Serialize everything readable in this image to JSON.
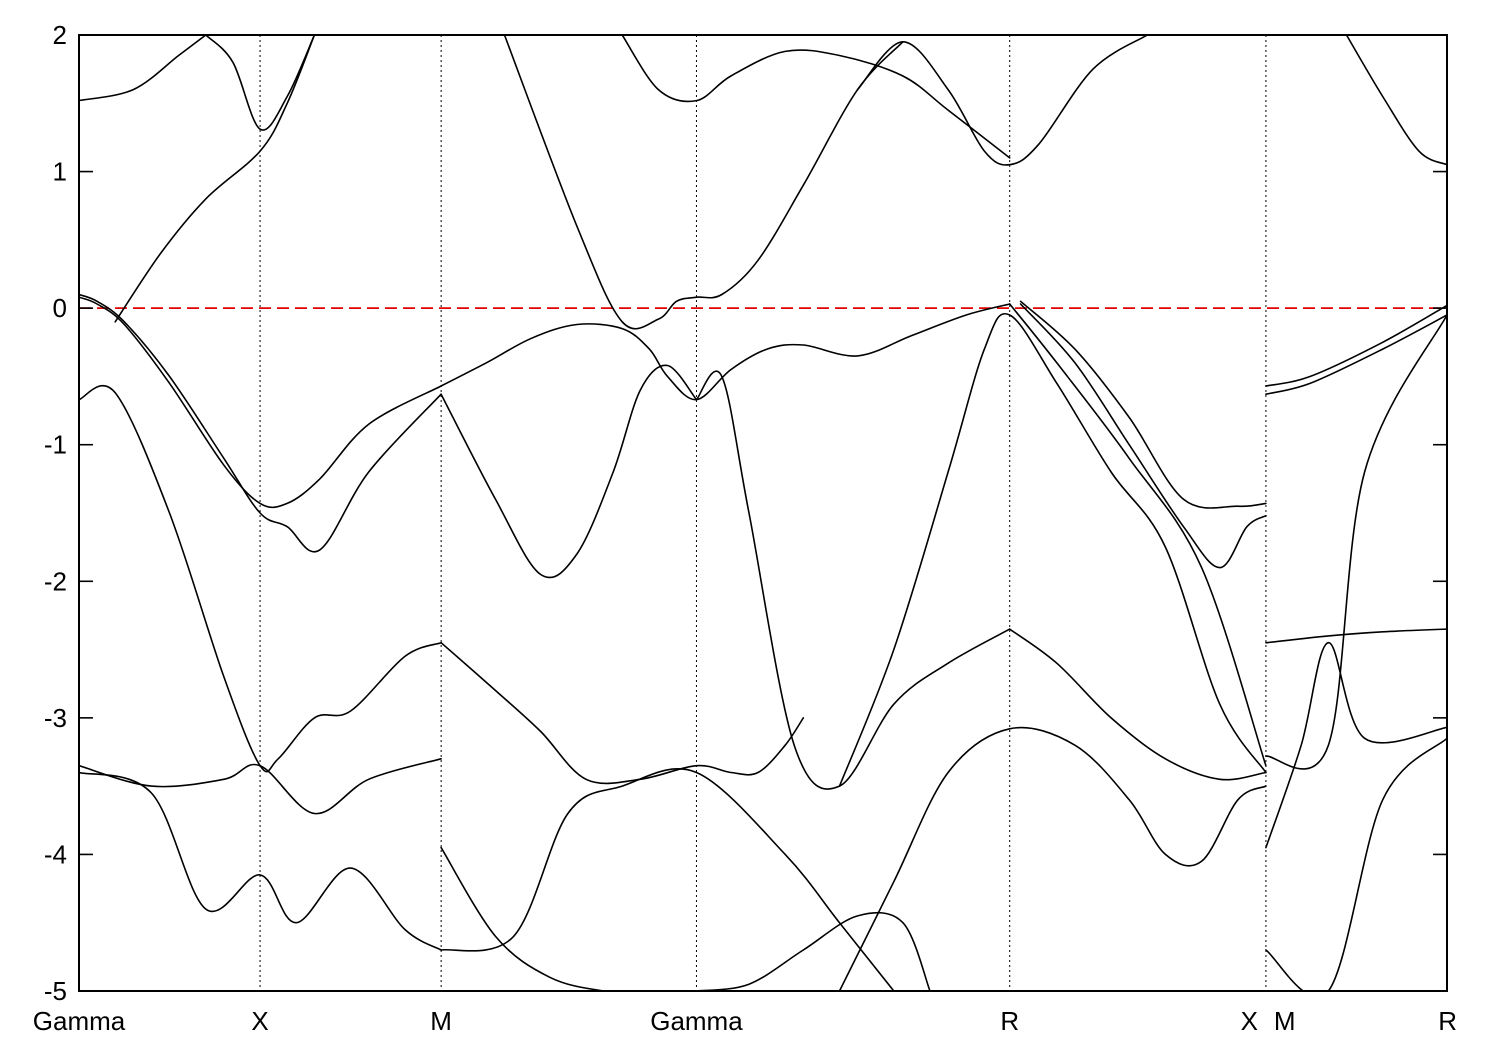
{
  "chart_data": {
    "type": "line",
    "title": "",
    "xlabel": "",
    "ylabel": "",
    "ylim": [
      -5,
      2
    ],
    "yticks": [
      2,
      1,
      0,
      -1,
      -2,
      -3,
      -4,
      -5
    ],
    "ytick_labels": [
      "2",
      "1",
      "0",
      "-1",
      "-2",
      "-3",
      "-4",
      "-5"
    ],
    "xlim": [
      0,
      7.5
    ],
    "kpoints": [
      {
        "label": "Gamma",
        "x": 0
      },
      {
        "label": "X",
        "x": 1.0
      },
      {
        "label": "M",
        "x": 2.0
      },
      {
        "label": "Gamma",
        "x": 3.41
      },
      {
        "label": "R",
        "x": 5.14
      },
      {
        "label": "X",
        "x": 6.555
      },
      {
        "label": "M",
        "x": 6.555
      },
      {
        "label": "R",
        "x": 7.555
      }
    ],
    "fermi_level": 0,
    "colors": {
      "bands": "#000000",
      "fermi": "#e00000"
    },
    "grid": false,
    "series": [
      {
        "x": [
          0,
          0.3,
          0.55,
          0.7
        ],
        "y": [
          1.52,
          1.6,
          1.85,
          2.0
        ]
      },
      {
        "x": [
          0.7,
          0.85,
          1.0,
          1.15,
          1.3
        ],
        "y": [
          2.0,
          1.8,
          1.31,
          1.55,
          2.0
        ]
      },
      {
        "x": [
          0.2,
          0.45,
          0.7,
          1.0,
          1.15,
          1.3
        ],
        "y": [
          -0.1,
          0.4,
          0.8,
          1.15,
          1.5,
          2.0
        ]
      },
      {
        "x": [
          0,
          0.1,
          0.25,
          0.5,
          0.8,
          1.0,
          1.15,
          1.33,
          1.6,
          2.0
        ],
        "y": [
          0.08,
          0.03,
          -0.12,
          -0.55,
          -1.15,
          -1.43,
          -1.43,
          -1.25,
          -0.85,
          -0.57
        ]
      },
      {
        "x": [
          0,
          0.1,
          0.25,
          0.5,
          0.8,
          1.0,
          1.15,
          1.33,
          1.6,
          2.0
        ],
        "y": [
          0.1,
          0.05,
          -0.1,
          -0.5,
          -1.1,
          -1.5,
          -1.6,
          -1.77,
          -1.2,
          -0.63
        ]
      },
      {
        "x": [
          2.0,
          2.25,
          2.5,
          2.75,
          3.0,
          3.15,
          3.25,
          3.41,
          3.6,
          3.8,
          4.0,
          4.3,
          4.6,
          4.9,
          5.14
        ],
        "y": [
          -0.57,
          -0.4,
          -0.22,
          -0.12,
          -0.15,
          -0.3,
          -0.5,
          -0.67,
          -0.45,
          -0.3,
          -0.27,
          -0.35,
          -0.2,
          -0.05,
          0.03
        ]
      },
      {
        "x": [
          2.0,
          2.3,
          2.55,
          2.75,
          2.95,
          3.1,
          3.25,
          3.41
        ],
        "y": [
          -0.63,
          -1.4,
          -1.95,
          -1.8,
          -1.2,
          -0.6,
          -0.42,
          -0.67
        ]
      },
      {
        "x": [
          2.35,
          2.75,
          3.0,
          3.2,
          3.3,
          3.41,
          3.55,
          3.75,
          4.0,
          4.3,
          4.55
        ],
        "y": [
          2.0,
          0.6,
          -0.1,
          -0.08,
          0.05,
          0.08,
          0.1,
          0.35,
          0.9,
          1.6,
          1.95
        ]
      },
      {
        "x": [
          3.0,
          3.2,
          3.41,
          3.6,
          3.9,
          4.2,
          4.55,
          4.8,
          5.14
        ],
        "y": [
          2.0,
          1.6,
          1.52,
          1.7,
          1.88,
          1.85,
          1.7,
          1.45,
          1.1
        ]
      },
      {
        "x": [
          4.3,
          4.55,
          4.8,
          5.0,
          5.14,
          5.3,
          5.6,
          5.9
        ],
        "y": [
          1.6,
          1.95,
          1.6,
          1.15,
          1.05,
          1.2,
          1.75,
          2.0
        ]
      },
      {
        "x": [
          0,
          0.2,
          0.5,
          0.8,
          1.0,
          1.1,
          1.3,
          1.5,
          1.8,
          2.0
        ],
        "y": [
          -0.67,
          -0.62,
          -1.5,
          -2.7,
          -3.35,
          -3.3,
          -3.0,
          -2.95,
          -2.55,
          -2.45
        ]
      },
      {
        "x": [
          2.0,
          2.3,
          2.55,
          2.8,
          3.1,
          3.41,
          3.6,
          3.75,
          3.9,
          4.0
        ],
        "y": [
          -2.45,
          -2.8,
          -3.1,
          -3.45,
          -3.45,
          -3.35,
          -3.4,
          -3.4,
          -3.2,
          -3.0
        ]
      },
      {
        "x": [
          3.41,
          3.55,
          3.7,
          3.95,
          4.2,
          4.5,
          4.8,
          5.14
        ],
        "y": [
          -0.67,
          -0.5,
          -1.5,
          -3.2,
          -3.5,
          -2.9,
          -2.6,
          -2.35
        ]
      },
      {
        "x": [
          4.2,
          4.5,
          4.8,
          5.0,
          5.14,
          5.4,
          5.7,
          6.0,
          6.3,
          6.555
        ],
        "y": [
          -3.5,
          -2.5,
          -1.2,
          -0.3,
          -0.05,
          -0.55,
          -1.2,
          -1.75,
          -2.9,
          -3.4
        ]
      },
      {
        "x": [
          5.14,
          5.4,
          5.8,
          6.2,
          6.555
        ],
        "y": [
          0.03,
          -0.4,
          -1.1,
          -1.9,
          -3.35
        ]
      },
      {
        "x": [
          5.2,
          5.5,
          5.8,
          6.1,
          6.4,
          6.555
        ],
        "y": [
          0.05,
          -0.3,
          -0.8,
          -1.4,
          -1.45,
          -1.43
        ]
      },
      {
        "x": [
          5.2,
          5.5,
          5.8,
          6.1,
          6.3,
          6.45,
          6.555
        ],
        "y": [
          0.03,
          -0.4,
          -1.0,
          -1.6,
          -1.9,
          -1.6,
          -1.52
        ]
      },
      {
        "x": [
          5.14,
          5.4,
          5.7,
          6.0,
          6.3,
          6.555
        ],
        "y": [
          -2.35,
          -2.6,
          -3.0,
          -3.3,
          -3.45,
          -3.4
        ]
      },
      {
        "x": [
          4.2,
          4.5,
          4.8,
          5.14,
          5.5,
          5.8,
          6.0,
          6.2,
          6.4,
          6.555
        ],
        "y": [
          -5.0,
          -4.2,
          -3.4,
          -3.08,
          -3.2,
          -3.6,
          -4.0,
          -4.05,
          -3.6,
          -3.5
        ]
      },
      {
        "x": [
          0,
          0.4,
          0.8,
          1.0,
          1.3,
          1.6,
          2.0
        ],
        "y": [
          -3.35,
          -3.5,
          -3.45,
          -3.35,
          -3.7,
          -3.45,
          -3.3
        ]
      },
      {
        "x": [
          0,
          0.4,
          0.7,
          1.0,
          1.2,
          1.5,
          1.8,
          2.0
        ],
        "y": [
          -3.4,
          -3.55,
          -4.4,
          -4.15,
          -4.5,
          -4.1,
          -4.55,
          -4.7
        ]
      },
      {
        "x": [
          2.0,
          2.4,
          2.7,
          3.0,
          3.41,
          3.9,
          4.2,
          4.5
        ],
        "y": [
          -4.7,
          -4.6,
          -3.7,
          -3.5,
          -3.4,
          -4.0,
          -4.5,
          -5.0
        ]
      },
      {
        "x": [
          2.0,
          2.3,
          2.6,
          2.9,
          3.1,
          3.3
        ],
        "y": [
          -3.95,
          -4.6,
          -4.9,
          -5.0,
          -5.0,
          -5.0
        ]
      },
      {
        "x": [
          3.41,
          3.7,
          4.0,
          4.3,
          4.55,
          4.7
        ],
        "y": [
          -5.0,
          -4.95,
          -4.7,
          -4.45,
          -4.5,
          -5.0
        ]
      },
      {
        "x": [
          6.555,
          6.8,
          7.2,
          7.555
        ],
        "y": [
          -0.57,
          -0.5,
          -0.25,
          0.02
        ]
      },
      {
        "x": [
          6.555,
          6.8,
          7.2,
          7.555
        ],
        "y": [
          -0.63,
          -0.55,
          -0.3,
          -0.05
        ]
      },
      {
        "x": [
          6.555,
          6.9,
          7.2,
          7.555
        ],
        "y": [
          -2.45,
          -2.4,
          -2.37,
          -2.35
        ]
      },
      {
        "x": [
          6.555,
          6.9,
          7.1,
          7.555
        ],
        "y": [
          -3.28,
          -3.2,
          -1.2,
          -0.05
        ]
      },
      {
        "x": [
          6.555,
          6.75,
          6.9,
          7.1,
          7.555
        ],
        "y": [
          -3.95,
          -3.2,
          -2.45,
          -3.15,
          -3.07
        ]
      },
      {
        "x": [
          6.555,
          6.9,
          7.2,
          7.555
        ],
        "y": [
          -4.7,
          -5.0,
          -3.6,
          -3.15
        ]
      },
      {
        "x": [
          7.0,
          7.2,
          7.4,
          7.555
        ],
        "y": [
          2.0,
          1.55,
          1.15,
          1.05
        ]
      }
    ]
  }
}
